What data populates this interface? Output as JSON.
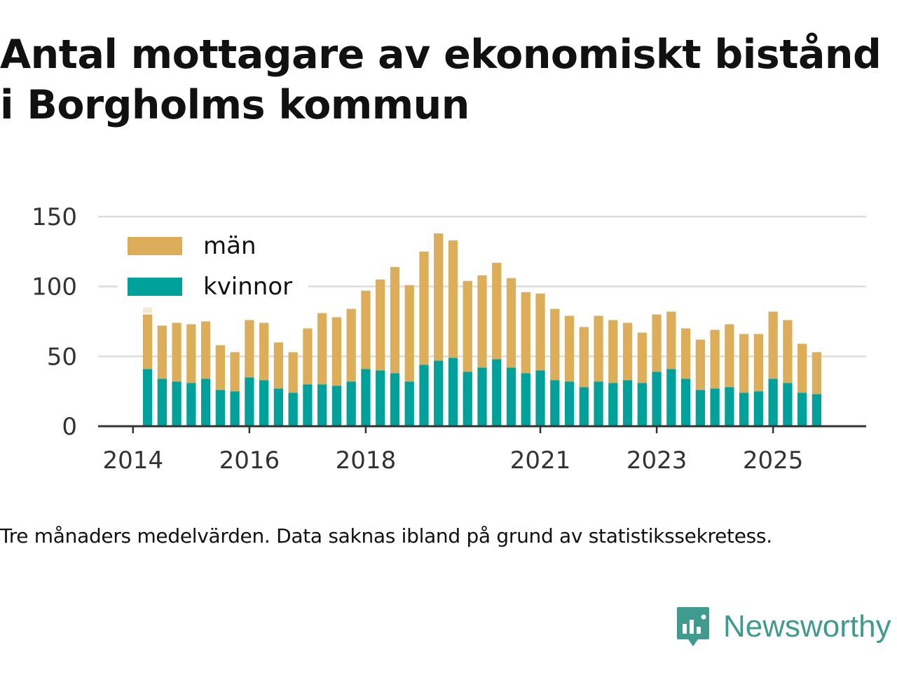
{
  "title": {
    "line1": "Antal mottagare av ekonomiskt bistånd",
    "line2": "i Borgholms kommun"
  },
  "footnote": "Tre månaders medelvärden. Data saknas ibland på grund av statistikssekretess.",
  "brand": {
    "name": "Newsworthy",
    "icon": "newsworthy-logo-icon",
    "color": "#3e9b8e"
  },
  "colors": {
    "man": "#dcae5a",
    "kvinnor": "#00a19a",
    "missing": "#f5ebd5",
    "grid": "#dddddd",
    "axis": "#333333"
  },
  "chart_data": {
    "type": "bar",
    "stacked": true,
    "title": "Antal mottagare av ekonomiskt bistånd i Borgholms kommun",
    "xlabel": "",
    "ylabel": "",
    "ylim": [
      0,
      150
    ],
    "yticks": [
      0,
      50,
      100,
      150
    ],
    "grid": true,
    "legend_position": "top-left",
    "x_ticks": [
      {
        "label": "2014",
        "x": 2014.0
      },
      {
        "label": "2016",
        "x": 2016.0
      },
      {
        "label": "2018",
        "x": 2018.0
      },
      {
        "label": "2021",
        "x": 2021.0
      },
      {
        "label": "2023",
        "x": 2023.0
      },
      {
        "label": "2025",
        "x": 2025.0
      }
    ],
    "x": [
      2014.0,
      2014.25,
      2014.5,
      2014.75,
      2015.0,
      2015.25,
      2015.5,
      2015.75,
      2016.0,
      2016.25,
      2016.5,
      2016.75,
      2017.0,
      2017.25,
      2017.5,
      2017.75,
      2018.0,
      2018.25,
      2018.5,
      2018.75,
      2019.0,
      2019.25,
      2019.5,
      2019.75,
      2020.0,
      2020.25,
      2020.5,
      2020.75,
      2021.0,
      2021.25,
      2021.5,
      2021.75,
      2022.0,
      2022.25,
      2022.5,
      2022.75,
      2023.0,
      2023.25,
      2023.5,
      2023.75,
      2024.0,
      2024.25,
      2024.5,
      2024.75,
      2025.0,
      2025.25,
      2025.5,
      2025.75
    ],
    "x_domain": [
      2013.4,
      2026.6
    ],
    "missing": [
      {
        "x": 2014.25,
        "from": 81,
        "to": 85,
        "series": "män"
      }
    ],
    "series": [
      {
        "name": "kvinnor",
        "color": "#00a19a",
        "values": [
          null,
          41,
          34,
          32,
          31,
          34,
          26,
          25,
          35,
          33,
          27,
          24,
          30,
          30,
          29,
          32,
          41,
          40,
          38,
          32,
          44,
          47,
          49,
          39,
          42,
          48,
          42,
          38,
          40,
          33,
          32,
          28,
          32,
          31,
          33,
          31,
          39,
          41,
          34,
          26,
          27,
          28,
          24,
          25,
          34,
          31,
          24,
          23
        ]
      },
      {
        "name": "män",
        "color": "#dcae5a",
        "values": [
          null,
          39,
          38,
          42,
          42,
          41,
          32,
          28,
          41,
          41,
          33,
          29,
          40,
          51,
          49,
          52,
          56,
          65,
          76,
          69,
          81,
          91,
          84,
          65,
          66,
          69,
          64,
          58,
          55,
          51,
          47,
          43,
          47,
          45,
          41,
          36,
          41,
          41,
          36,
          36,
          42,
          45,
          42,
          41,
          48,
          45,
          35,
          30
        ]
      }
    ]
  }
}
